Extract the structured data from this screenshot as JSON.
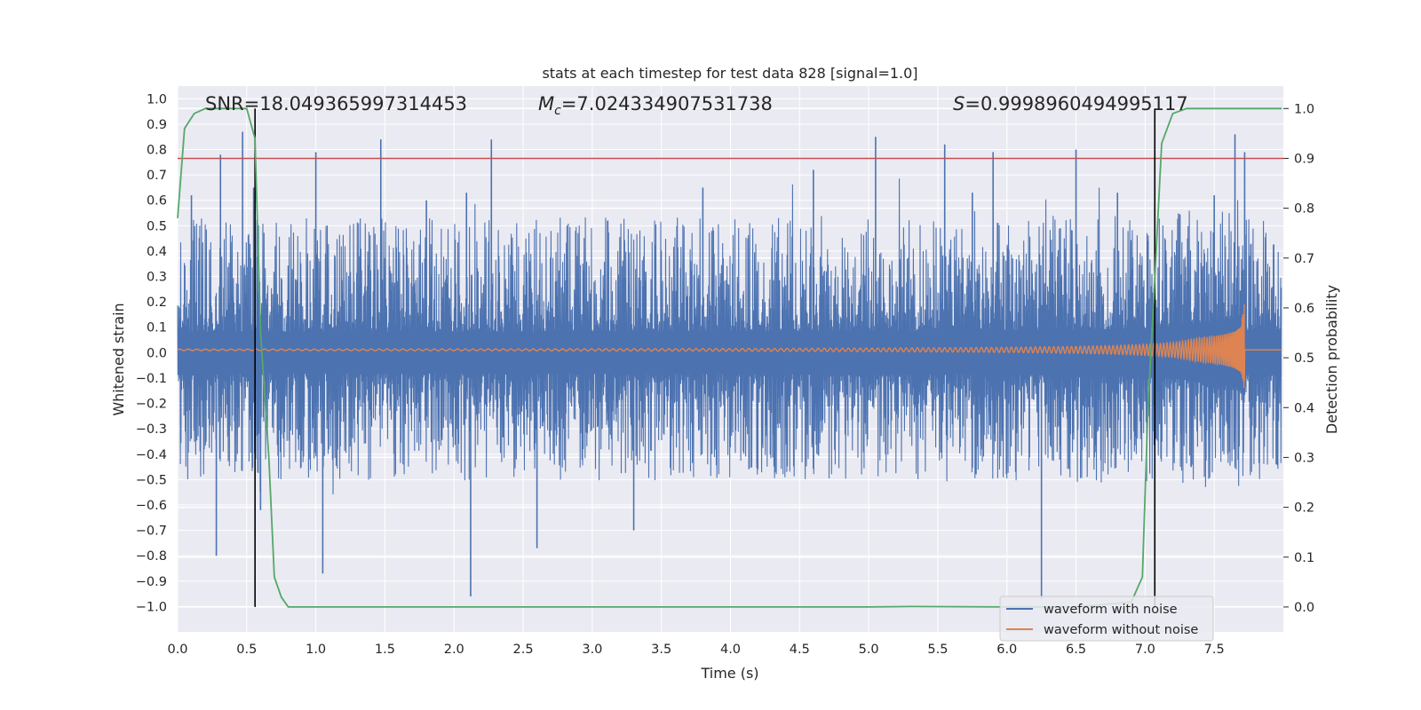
{
  "chart_data": {
    "type": "line",
    "title": "stats at each timestep for test data 828 [signal=1.0]",
    "xlabel": "Time (s)",
    "ylabel_left": "Whitened strain",
    "ylabel_right": "Detection probability",
    "xlim": [
      0,
      8
    ],
    "ylim_left": [
      -1.1,
      1.05
    ],
    "ylim_right": [
      -0.05,
      1.045
    ],
    "x_ticks": [
      "0.0",
      "0.5",
      "1.0",
      "1.5",
      "2.0",
      "2.5",
      "3.0",
      "3.5",
      "4.0",
      "4.5",
      "5.0",
      "5.5",
      "6.0",
      "6.5",
      "7.0",
      "7.5"
    ],
    "y_ticks_left": [
      "1.0",
      "0.9",
      "0.8",
      "0.7",
      "0.6",
      "0.5",
      "0.4",
      "0.3",
      "0.2",
      "0.1",
      "0.0",
      "−0.1",
      "−0.2",
      "−0.3",
      "−0.4",
      "−0.5",
      "−0.6",
      "−0.7",
      "−0.8",
      "−0.9",
      "−1.0"
    ],
    "y_ticks_right": [
      "1.0",
      "0.9",
      "0.8",
      "0.7",
      "0.6",
      "0.5",
      "0.4",
      "0.3",
      "0.2",
      "0.1",
      "0.0"
    ],
    "grid": true,
    "legend_position": "lower-right",
    "annotations": {
      "snr": "SNR=18.049365997314453",
      "mc_symbol": "M",
      "mc_subscript": "c",
      "mc_value": "=7.024334907531738",
      "s_symbol": "S",
      "s_value": "=0.9998960494995117"
    },
    "series": [
      {
        "name": "waveform with noise",
        "axis": "left",
        "color": "#4c72b0",
        "description_of_shape": "dense noise, peaks mostly between -0.5 and 0.6",
        "peaks_x": [
          0.1,
          0.28,
          0.31,
          0.47,
          0.55,
          0.6,
          1.0,
          1.05,
          1.47,
          1.8,
          2.09,
          2.12,
          2.27,
          2.6,
          3.3,
          3.8,
          4.6,
          5.05,
          5.55,
          5.75,
          5.9,
          6.25,
          6.5,
          6.8,
          7.5,
          7.65,
          7.72
        ],
        "peaks_y": [
          0.62,
          -0.8,
          0.78,
          0.87,
          0.65,
          -0.62,
          0.79,
          -0.87,
          0.84,
          0.6,
          0.63,
          -0.96,
          0.84,
          -0.77,
          -0.7,
          0.65,
          0.72,
          0.85,
          0.82,
          0.63,
          0.79,
          -0.97,
          0.8,
          0.63,
          0.62,
          0.86,
          0.79
        ]
      },
      {
        "name": "waveform without noise",
        "axis": "left",
        "color": "#dd8452",
        "description_of_shape": "chirp, amplitude rises from about 0.02 to 0.43 and peaks near 7.7 s, then flat",
        "merger_time": 7.72,
        "peak_amplitude": 0.43,
        "min_amplitude": -0.54,
        "start_amplitude": 0.02
      },
      {
        "name": "detection probability",
        "axis": "right",
        "color": "#55a868",
        "x": [
          0.0,
          0.05,
          0.12,
          0.2,
          0.3,
          0.4,
          0.5,
          0.56,
          0.6,
          0.66,
          0.7,
          0.75,
          0.8,
          1.0,
          2.0,
          3.0,
          4.0,
          5.0,
          5.3,
          6.0,
          6.5,
          6.9,
          6.98,
          7.02,
          7.07,
          7.12,
          7.2,
          7.3,
          7.5,
          7.8,
          7.99
        ],
        "y": [
          0.78,
          0.96,
          0.99,
          1.0,
          1.0,
          1.0,
          1.0,
          0.94,
          0.55,
          0.3,
          0.06,
          0.02,
          0.0,
          0.0,
          0.0,
          0.0,
          0.0,
          0.0,
          0.001,
          0.0,
          0.0,
          0.01,
          0.06,
          0.4,
          0.66,
          0.93,
          0.99,
          1.0,
          1.0,
          1.0,
          1.0
        ]
      }
    ],
    "threshold": {
      "value": 0.9,
      "axis": "right",
      "color": "#c44e52"
    },
    "vertical_markers": [
      0.56,
      7.07
    ]
  }
}
